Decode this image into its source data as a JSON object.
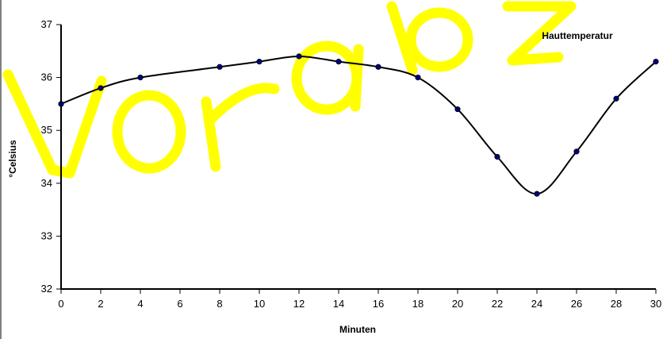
{
  "chart_data": {
    "type": "line",
    "legend": {
      "label": "Hauttemperatur",
      "placement": "top-right"
    },
    "xlabel": "Minuten",
    "ylabel": "°Celsius",
    "xlim": [
      0,
      30
    ],
    "ylim": [
      32,
      37
    ],
    "x_ticks": [
      0,
      2,
      4,
      6,
      8,
      10,
      12,
      14,
      16,
      18,
      20,
      22,
      24,
      26,
      28,
      30
    ],
    "y_ticks": [
      32,
      33,
      34,
      35,
      36,
      37
    ],
    "grid": false,
    "series": [
      {
        "name": "Hauttemperatur",
        "color": "#000000",
        "marker_color": "#000080",
        "x": [
          0,
          2,
          4,
          8,
          10,
          12,
          14,
          16,
          18,
          20,
          22,
          24,
          26,
          28,
          30
        ],
        "y": [
          35.5,
          35.8,
          36.0,
          36.2,
          36.3,
          36.4,
          36.3,
          36.2,
          36.0,
          35.4,
          34.5,
          33.8,
          34.6,
          35.6,
          36.3
        ]
      }
    ]
  },
  "watermark": {
    "text": "Vorabz",
    "color": "#ffff00"
  }
}
